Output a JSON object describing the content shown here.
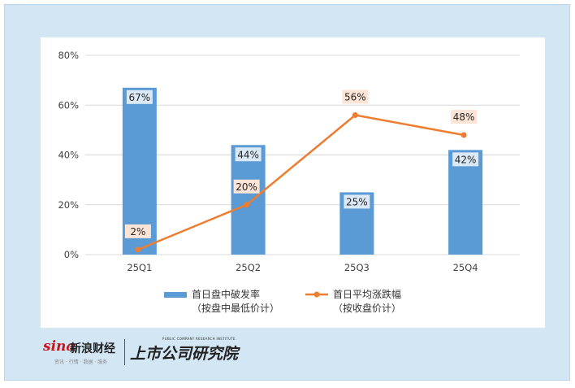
{
  "chart_data": {
    "type": "bar",
    "categories": [
      "25Q1",
      "25Q2",
      "25Q3",
      "25Q4"
    ],
    "yticks": [
      "0%",
      "20%",
      "40%",
      "60%",
      "80%"
    ],
    "ylim": [
      0,
      80
    ],
    "grid": true,
    "legend_position": "bottom",
    "series": [
      {
        "name": "首日盘中破发率",
        "name_line2": "（按盘中最低价计）",
        "kind": "bar",
        "color": "#5b9bd5",
        "values": [
          67,
          44,
          25,
          42
        ],
        "labels": [
          "67%",
          "44%",
          "25%",
          "42%"
        ]
      },
      {
        "name": "首日平均涨跌幅",
        "name_line2": "（按收盘价计）",
        "kind": "line",
        "color": "#ed7d31",
        "values": [
          2,
          20,
          56,
          48
        ],
        "labels": [
          "2%",
          "20%",
          "56%",
          "48%"
        ]
      }
    ]
  },
  "footer": {
    "sina_logo": "sina",
    "sina_name": "新浪财经",
    "sina_tags": "资讯 · 行情 · 数据 · 服务",
    "institute_en": "PUBLIC COMPANY RESEARCH INSTITUTE",
    "institute_name": "上市公司研究院"
  },
  "colors": {
    "frame_background": "#d3e6f4",
    "panel_background": "#ffffff",
    "bar": "#5b9bd5",
    "line": "#ed7d31",
    "line_label_background": "#fce4d6",
    "bar_label_background": "#dbe8f5"
  }
}
